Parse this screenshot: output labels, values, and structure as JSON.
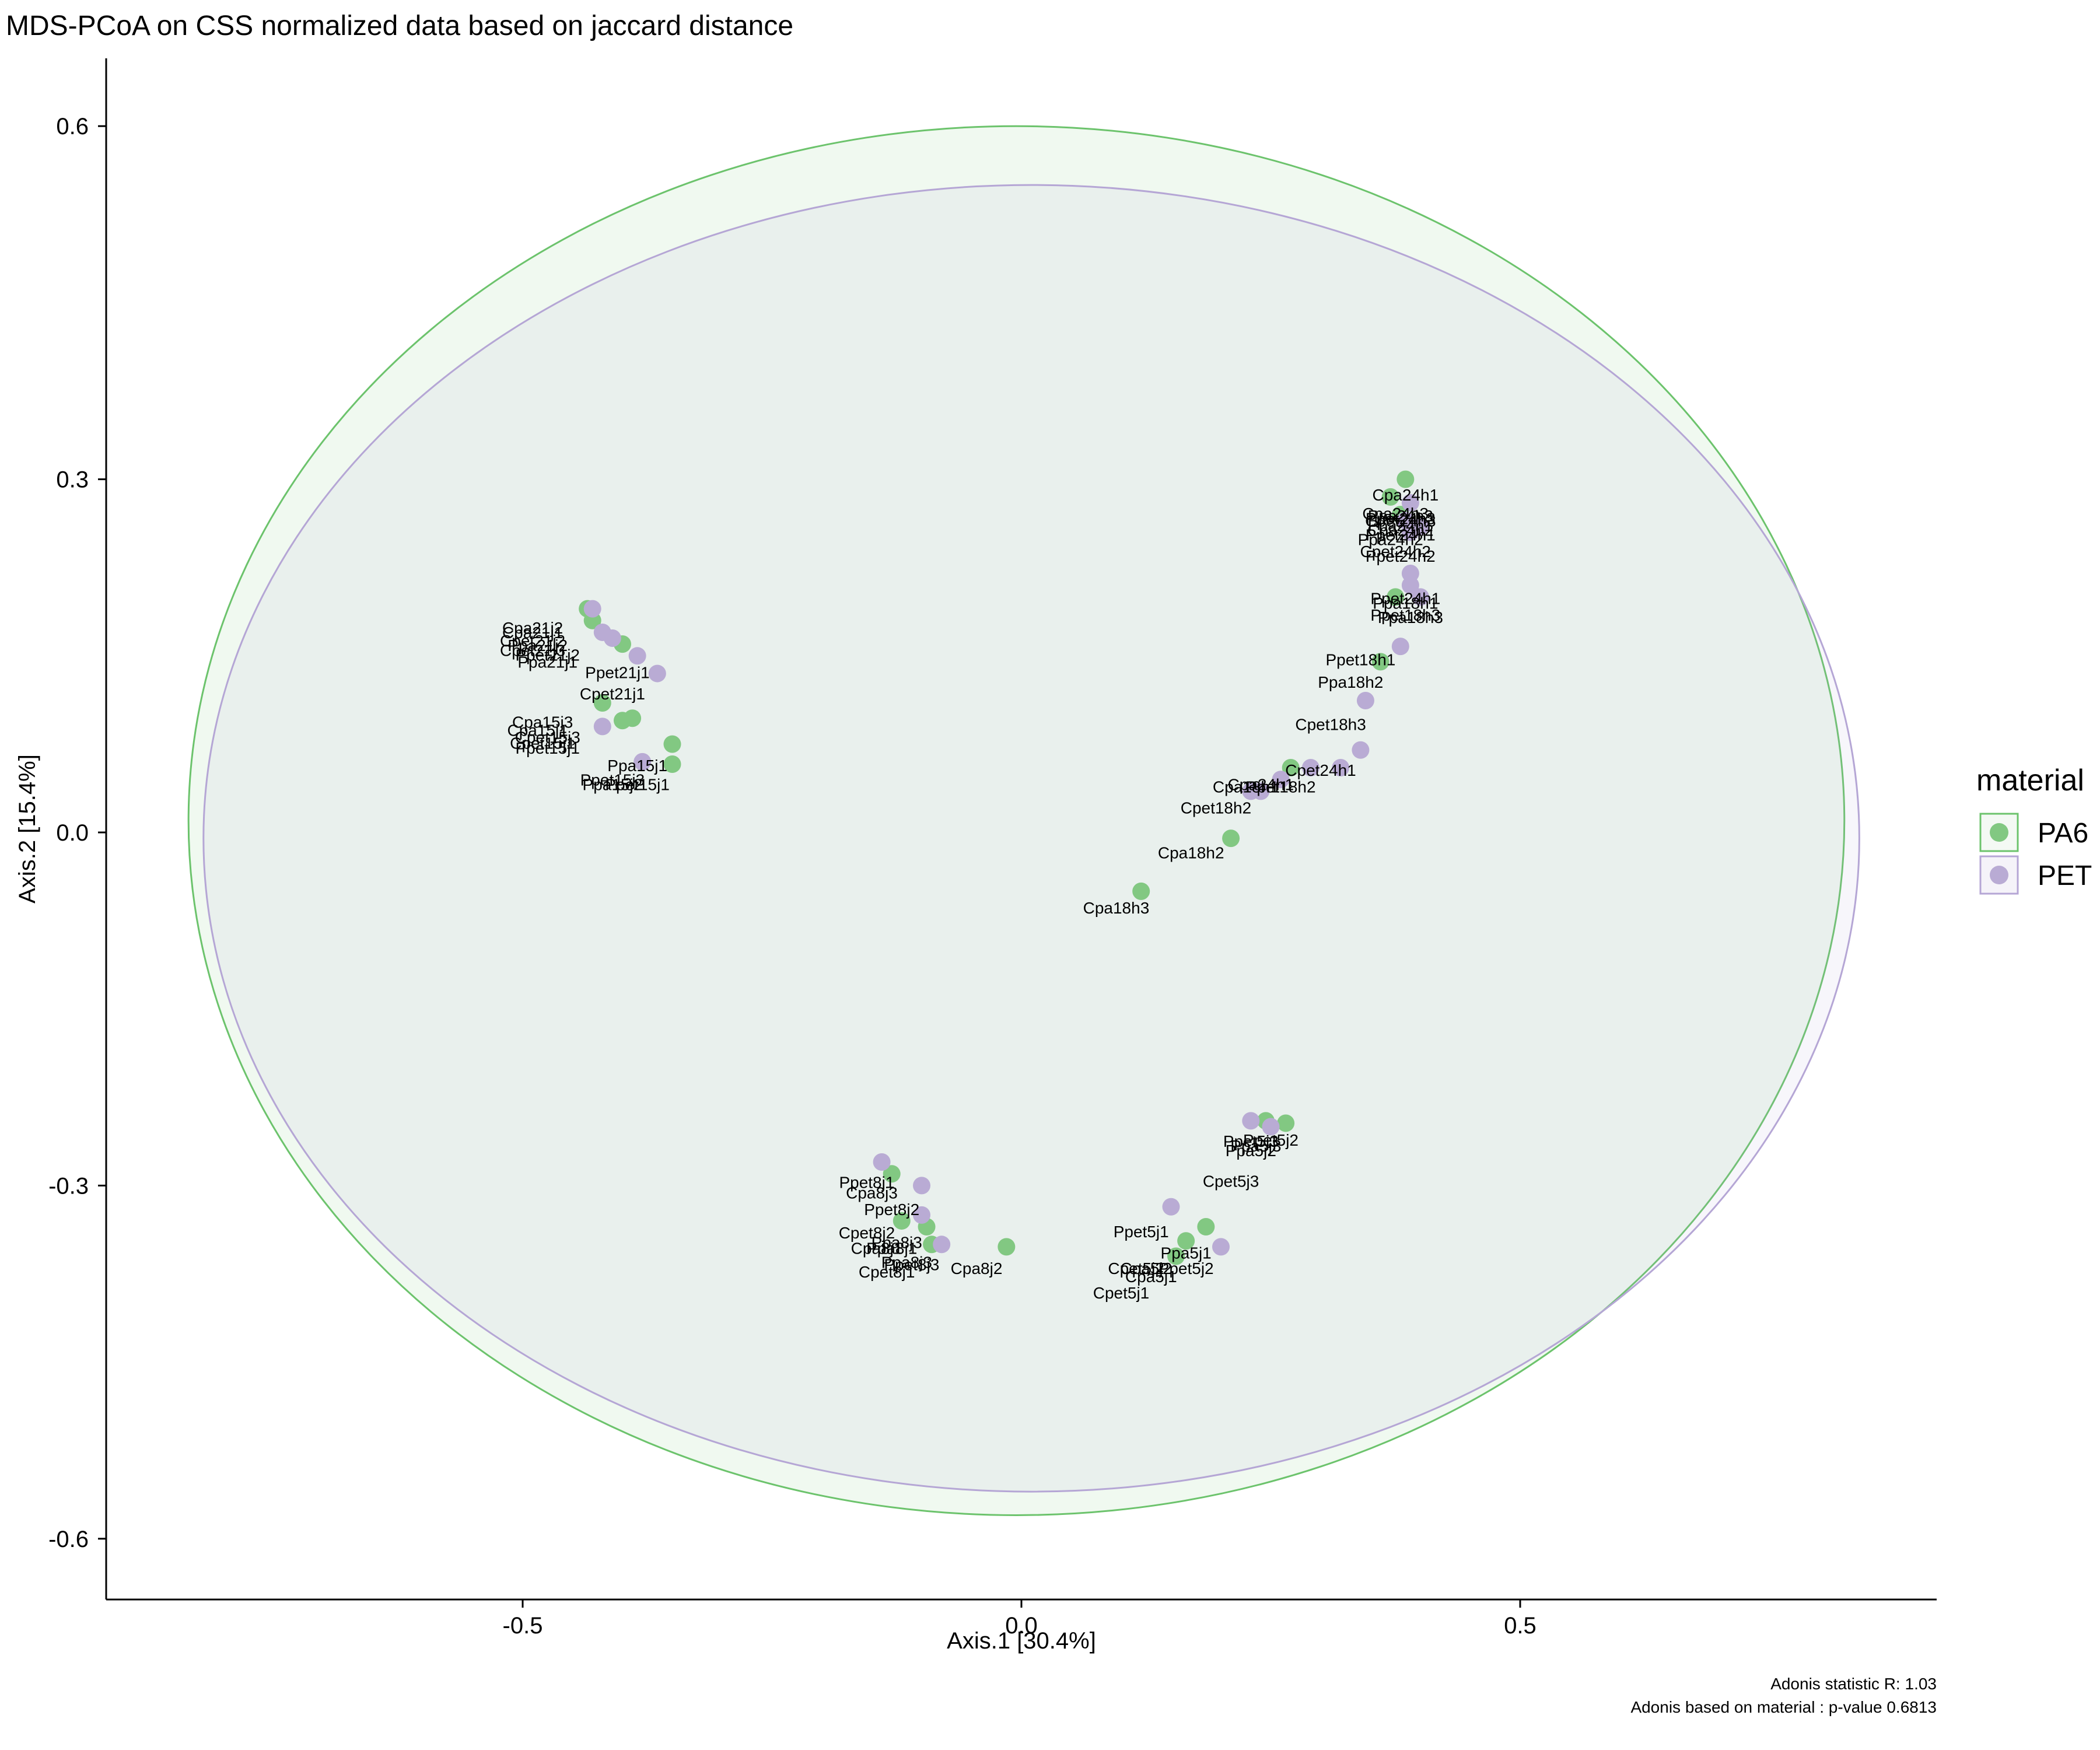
{
  "chart_data": {
    "type": "scatter",
    "title": "MDS-PCoA on CSS normalized data based on jaccard distance",
    "xlabel": "Axis.1   [30.4%]",
    "ylabel": "Axis.2   [15.4%]",
    "xlim": [
      -0.92,
      0.92
    ],
    "ylim": [
      -0.64,
      0.65
    ],
    "xticks": [
      {
        "value": -0.5,
        "label": "-0.5"
      },
      {
        "value": 0.0,
        "label": "0.0"
      },
      {
        "value": 0.5,
        "label": "0.5"
      }
    ],
    "yticks": [
      {
        "value": 0.6,
        "label": "0.6"
      },
      {
        "value": 0.3,
        "label": "0.3"
      },
      {
        "value": 0.0,
        "label": "0.0"
      },
      {
        "value": -0.3,
        "label": "-0.3"
      },
      {
        "value": -0.6,
        "label": "-0.6"
      }
    ],
    "grid": false,
    "legend": {
      "title": "material",
      "position": "right",
      "entries": [
        {
          "name": "PA6",
          "color": "#82C882"
        },
        {
          "name": "PET",
          "color": "#B9ABD4"
        }
      ]
    },
    "ellipses": [
      {
        "name": "PA6",
        "cx": -0.005,
        "cy": 0.01,
        "rx": 0.83,
        "ry": 0.59,
        "stroke": "#6CC36C",
        "fill": "#6CC36C"
      },
      {
        "name": "PET",
        "cx": 0.01,
        "cy": -0.005,
        "rx": 0.83,
        "ry": 0.555,
        "stroke": "#B5A6D5",
        "fill": "#B5A6D5"
      }
    ],
    "series": [
      {
        "name": "PA6",
        "color": "#82C882",
        "points": [
          [
            0.385,
            0.3
          ],
          [
            0.37,
            0.285
          ],
          [
            0.38,
            0.27
          ],
          [
            0.36,
            0.145
          ],
          [
            0.375,
            0.2
          ],
          [
            0.27,
            0.055
          ],
          [
            0.21,
            -0.005
          ],
          [
            0.12,
            -0.05
          ],
          [
            -0.435,
            0.19
          ],
          [
            -0.43,
            0.18
          ],
          [
            -0.4,
            0.16
          ],
          [
            -0.42,
            0.11
          ],
          [
            -0.4,
            0.095
          ],
          [
            -0.39,
            0.097
          ],
          [
            -0.35,
            0.075
          ],
          [
            -0.35,
            0.058
          ],
          [
            -0.13,
            -0.29
          ],
          [
            -0.12,
            -0.33
          ],
          [
            -0.095,
            -0.335
          ],
          [
            -0.09,
            -0.35
          ],
          [
            -0.015,
            -0.352
          ],
          [
            0.245,
            -0.245
          ],
          [
            0.265,
            -0.247
          ],
          [
            0.185,
            -0.335
          ],
          [
            0.165,
            -0.347
          ],
          [
            0.155,
            -0.36
          ]
        ]
      },
      {
        "name": "PET",
        "color": "#B9ABD4",
        "points": [
          [
            0.39,
            0.28
          ],
          [
            0.385,
            0.265
          ],
          [
            0.39,
            0.255
          ],
          [
            0.4,
            0.26
          ],
          [
            0.39,
            0.22
          ],
          [
            0.39,
            0.21
          ],
          [
            0.4,
            0.2
          ],
          [
            0.38,
            0.158
          ],
          [
            0.345,
            0.112
          ],
          [
            0.34,
            0.07
          ],
          [
            0.32,
            0.055
          ],
          [
            0.29,
            0.055
          ],
          [
            0.26,
            0.045
          ],
          [
            0.24,
            0.035
          ],
          [
            0.23,
            0.035
          ],
          [
            -0.43,
            0.19
          ],
          [
            -0.42,
            0.17
          ],
          [
            -0.41,
            0.165
          ],
          [
            -0.385,
            0.15
          ],
          [
            -0.365,
            0.135
          ],
          [
            -0.42,
            0.09
          ],
          [
            -0.38,
            0.06
          ],
          [
            -0.14,
            -0.28
          ],
          [
            -0.1,
            -0.3
          ],
          [
            -0.1,
            -0.325
          ],
          [
            -0.08,
            -0.35
          ],
          [
            0.23,
            -0.245
          ],
          [
            0.25,
            -0.25
          ],
          [
            0.15,
            -0.318
          ],
          [
            0.2,
            -0.352
          ]
        ]
      }
    ],
    "annotations": [
      {
        "text": "Cpa24h1",
        "x": 0.385,
        "y": 0.282
      },
      {
        "text": "Cpa24h3",
        "x": 0.375,
        "y": 0.266
      },
      {
        "text": "Ppa24h3",
        "x": 0.38,
        "y": 0.264
      },
      {
        "text": "Ppet24h3",
        "x": 0.38,
        "y": 0.262
      },
      {
        "text": "Cpet24h3",
        "x": 0.38,
        "y": 0.26
      },
      {
        "text": "Ppa24h1",
        "x": 0.38,
        "y": 0.256
      },
      {
        "text": "Cpa24h2",
        "x": 0.38,
        "y": 0.252
      },
      {
        "text": "Ppet24h1",
        "x": 0.38,
        "y": 0.248
      },
      {
        "text": "Ppa24h2",
        "x": 0.37,
        "y": 0.244
      },
      {
        "text": "Cpet24h2",
        "x": 0.375,
        "y": 0.234
      },
      {
        "text": "Ppet24h2",
        "x": 0.38,
        "y": 0.23
      },
      {
        "text": "Ppet24h1",
        "x": 0.385,
        "y": 0.194
      },
      {
        "text": "Ppa18h1",
        "x": 0.385,
        "y": 0.19
      },
      {
        "text": "Ppet18h3",
        "x": 0.385,
        "y": 0.18
      },
      {
        "text": "Ppa18h3",
        "x": 0.39,
        "y": 0.178
      },
      {
        "text": "Ppet18h1",
        "x": 0.34,
        "y": 0.142
      },
      {
        "text": "Ppa18h2",
        "x": 0.33,
        "y": 0.123
      },
      {
        "text": "Cpet18h3",
        "x": 0.31,
        "y": 0.087
      },
      {
        "text": "Cpet24h1",
        "x": 0.3,
        "y": 0.048
      },
      {
        "text": "Cpa24h1",
        "x": 0.24,
        "y": 0.036
      },
      {
        "text": "Cpa18h1",
        "x": 0.225,
        "y": 0.034
      },
      {
        "text": "Ppet18h2",
        "x": 0.26,
        "y": 0.034
      },
      {
        "text": "Cpet18h2",
        "x": 0.195,
        "y": 0.016
      },
      {
        "text": "Cpa18h2",
        "x": 0.17,
        "y": -0.022
      },
      {
        "text": "Cpa18h3",
        "x": 0.095,
        "y": -0.069
      },
      {
        "text": "Cpa21j2",
        "x": -0.49,
        "y": 0.169
      },
      {
        "text": "Cpa21j1",
        "x": -0.49,
        "y": 0.165
      },
      {
        "text": "Cpet21j2",
        "x": -0.49,
        "y": 0.158
      },
      {
        "text": "Ppa21j2",
        "x": -0.485,
        "y": 0.154
      },
      {
        "text": "Cpet21j3",
        "x": -0.49,
        "y": 0.15
      },
      {
        "text": "Ppet21j2",
        "x": -0.475,
        "y": 0.146
      },
      {
        "text": "Ppa21j1",
        "x": -0.475,
        "y": 0.14
      },
      {
        "text": "Ppet21j1",
        "x": -0.405,
        "y": 0.131
      },
      {
        "text": "Cpet21j1",
        "x": -0.41,
        "y": 0.113
      },
      {
        "text": "Cpa15j3",
        "x": -0.48,
        "y": 0.089
      },
      {
        "text": "Cpa15j1",
        "x": -0.485,
        "y": 0.082
      },
      {
        "text": "Cpet15j3",
        "x": -0.475,
        "y": 0.076
      },
      {
        "text": "Cpet15j1",
        "x": -0.48,
        "y": 0.071
      },
      {
        "text": "Ppet15j1",
        "x": -0.475,
        "y": 0.067
      },
      {
        "text": "Ppa15j1",
        "x": -0.385,
        "y": 0.052
      },
      {
        "text": "Ppet15j3",
        "x": -0.41,
        "y": 0.04
      },
      {
        "text": "Ppa15j2",
        "x": -0.41,
        "y": 0.036
      },
      {
        "text": "Ppet15j1",
        "x": -0.385,
        "y": 0.036
      },
      {
        "text": "Ppet8j1",
        "x": -0.155,
        "y": -0.302
      },
      {
        "text": "Cpa8j3",
        "x": -0.15,
        "y": -0.311
      },
      {
        "text": "Ppet8j2",
        "x": -0.13,
        "y": -0.325
      },
      {
        "text": "Cpet8j2",
        "x": -0.155,
        "y": -0.345
      },
      {
        "text": "Ppa8j3",
        "x": -0.125,
        "y": -0.353
      },
      {
        "text": "Cpa8j1",
        "x": -0.145,
        "y": -0.358
      },
      {
        "text": "Ppa8j1",
        "x": -0.13,
        "y": -0.358
      },
      {
        "text": "Ppa8j3",
        "x": -0.115,
        "y": -0.37
      },
      {
        "text": "Ppet8j3",
        "x": -0.11,
        "y": -0.372
      },
      {
        "text": "Cpa8j2",
        "x": -0.045,
        "y": -0.375
      },
      {
        "text": "Cpet8j1",
        "x": -0.135,
        "y": -0.378
      },
      {
        "text": "Ppet5j3",
        "x": 0.23,
        "y": -0.267
      },
      {
        "text": "Ppa5j3",
        "x": 0.235,
        "y": -0.271
      },
      {
        "text": "Ppet5j2",
        "x": 0.25,
        "y": -0.266
      },
      {
        "text": "Ppa5j2",
        "x": 0.23,
        "y": -0.275
      },
      {
        "text": "Cpet5j3",
        "x": 0.21,
        "y": -0.301
      },
      {
        "text": "Ppet5j1",
        "x": 0.12,
        "y": -0.344
      },
      {
        "text": "Ppa5j1",
        "x": 0.165,
        "y": -0.362
      },
      {
        "text": "Cpet5j2",
        "x": 0.115,
        "y": -0.375
      },
      {
        "text": "Cpa5j2",
        "x": 0.125,
        "y": -0.375
      },
      {
        "text": "Ppet5j2",
        "x": 0.165,
        "y": -0.375
      },
      {
        "text": "Cpa5j1",
        "x": 0.13,
        "y": -0.382
      },
      {
        "text": "Cpet5j1",
        "x": 0.1,
        "y": -0.396
      }
    ],
    "caption": [
      "Adonis statistic R: 1.03",
      "Adonis based on  material : p-value 0.6813"
    ]
  }
}
